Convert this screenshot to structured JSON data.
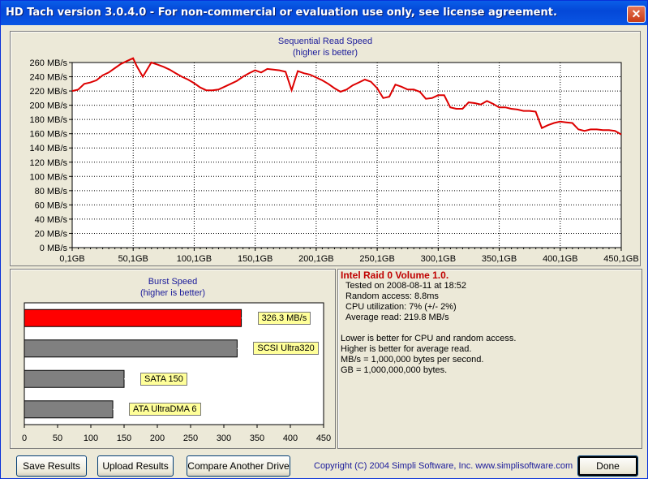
{
  "window": {
    "title": "HD Tach version 3.0.4.0  - For non-commercial or evaluation use only, see license agreement.",
    "close_glyph": "✕"
  },
  "read_chart": {
    "title": "Sequential Read Speed",
    "subtitle": "(higher is better)"
  },
  "burst_chart": {
    "title": "Burst Speed",
    "subtitle": "(higher is better)"
  },
  "chart_data": [
    {
      "type": "line",
      "title": "Sequential Read Speed",
      "subtitle": "(higher is better)",
      "xlabel": "",
      "ylabel": "",
      "x_ticks": [
        "0,1GB",
        "50,1GB",
        "100,1GB",
        "150,1GB",
        "200,1GB",
        "250,1GB",
        "300,1GB",
        "350,1GB",
        "400,1GB",
        "450,1GB"
      ],
      "xlim": [
        0.1,
        450.1
      ],
      "ylim": [
        0,
        260
      ],
      "y_ticks": [
        "0 MB/s",
        "20 MB/s",
        "40 MB/s",
        "60 MB/s",
        "80 MB/s",
        "100 MB/s",
        "120 MB/s",
        "140 MB/s",
        "160 MB/s",
        "180 MB/s",
        "200 MB/s",
        "220 MB/s",
        "240 MB/s",
        "260 MB/s"
      ],
      "grid": true,
      "series": [
        {
          "color": "#dd0000",
          "x": [
            0.1,
            5,
            10,
            15,
            20,
            25,
            30,
            35,
            40,
            45,
            50,
            53,
            58,
            65,
            70,
            75,
            80,
            85,
            90,
            95,
            100,
            105,
            110,
            115,
            120,
            125,
            130,
            135,
            140,
            145,
            150,
            155,
            160,
            165,
            170,
            175,
            180,
            185,
            190,
            195,
            200,
            205,
            210,
            215,
            220,
            225,
            230,
            235,
            240,
            245,
            250,
            255,
            260,
            265,
            270,
            275,
            280,
            285,
            290,
            295,
            300,
            305,
            310,
            315,
            320,
            325,
            330,
            335,
            340,
            345,
            350,
            355,
            360,
            365,
            370,
            375,
            380,
            385,
            390,
            395,
            400,
            405,
            410,
            415,
            420,
            425,
            430,
            435,
            440,
            445,
            450.1
          ],
          "y": [
            220,
            222,
            230,
            232,
            235,
            242,
            246,
            252,
            258,
            262,
            266,
            255,
            240,
            260,
            257,
            254,
            250,
            245,
            240,
            236,
            231,
            225,
            221,
            221,
            222,
            226,
            230,
            234,
            240,
            245,
            249,
            246,
            251,
            250,
            249,
            247,
            221,
            248,
            245,
            243,
            239,
            235,
            230,
            224,
            219,
            222,
            228,
            232,
            236,
            233,
            224,
            210,
            212,
            229,
            226,
            222,
            222,
            219,
            209,
            210,
            214,
            214,
            197,
            195,
            195,
            204,
            203,
            201,
            206,
            202,
            197,
            197,
            195,
            194,
            192,
            192,
            191,
            168,
            172,
            175,
            177,
            176,
            175,
            166,
            164,
            166,
            166,
            165,
            165,
            164,
            159
          ]
        }
      ]
    },
    {
      "type": "bar",
      "orientation": "horizontal",
      "title": "Burst Speed",
      "subtitle": "(higher is better)",
      "categories": [
        "326.3 MB/s",
        "SCSI Ultra320",
        "SATA 150",
        "ATA UltraDMA 6"
      ],
      "values": [
        326.3,
        320,
        150,
        133
      ],
      "colors": [
        "#ff0000",
        "#808080",
        "#808080",
        "#808080"
      ],
      "xlim": [
        0,
        450
      ],
      "x_ticks": [
        "0",
        "50",
        "100",
        "150",
        "200",
        "250",
        "300",
        "350",
        "400",
        "450"
      ]
    }
  ],
  "results": {
    "drive_name": "Intel Raid 0 Volume 1.0.",
    "tested_on": "Tested on 2008-08-11 at 18:52",
    "random_access": "Random access: 8.8ms",
    "cpu_utilization": "CPU utilization: 7% (+/- 2%)",
    "average_read": "Average read: 219.8 MB/s",
    "note1": "Lower is better for CPU and random access.",
    "note2": "Higher is better for average read.",
    "note3": "MB/s = 1,000,000 bytes per second.",
    "note4": "GB = 1,000,000,000 bytes."
  },
  "buttons": {
    "save": "Save Results",
    "upload": "Upload Results",
    "compare": "Compare Another Drive",
    "done": "Done"
  },
  "footer": {
    "copyright": "Copyright (C) 2004 Simpli Software, Inc. www.simplisoftware.com"
  }
}
